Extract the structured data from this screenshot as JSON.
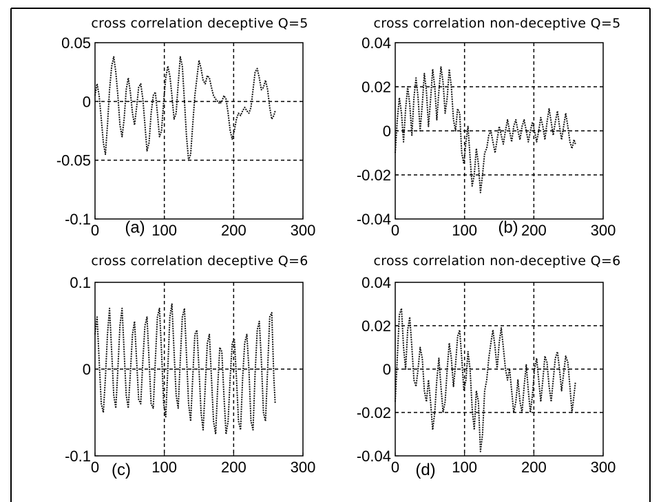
{
  "chart_data": [
    {
      "type": "line",
      "panel_label": "(a)",
      "title": "cross correlation deceptive Q=5",
      "xlabel": "",
      "ylabel": "",
      "xlim": [
        0,
        300
      ],
      "ylim": [
        -0.1,
        0.05
      ],
      "xticks": [
        0,
        100,
        200,
        300
      ],
      "yticks": [
        -0.1,
        -0.05,
        0,
        0.05
      ],
      "xtick_labels": [
        "0",
        "100",
        "200",
        "300"
      ],
      "ytick_labels": [
        "-0.1",
        "-0.05",
        "0",
        "0.05"
      ],
      "grid": true,
      "x": [
        0,
        3,
        6,
        9,
        12,
        15,
        18,
        21,
        24,
        27,
        30,
        33,
        36,
        39,
        42,
        45,
        48,
        51,
        54,
        57,
        60,
        63,
        66,
        69,
        72,
        75,
        78,
        81,
        84,
        87,
        90,
        93,
        96,
        99,
        102,
        105,
        108,
        111,
        114,
        117,
        120,
        123,
        126,
        129,
        132,
        135,
        138,
        141,
        144,
        147,
        150,
        153,
        156,
        159,
        162,
        165,
        168,
        171,
        174,
        177,
        180,
        183,
        186,
        189,
        192,
        195,
        198,
        201,
        204,
        207,
        210,
        213,
        216,
        219,
        222,
        225,
        228,
        231,
        234,
        237,
        240,
        243,
        246,
        249,
        252,
        255,
        258,
        260
      ],
      "series": [
        {
          "values": [
            0.005,
            0.015,
            0.005,
            -0.015,
            -0.035,
            -0.045,
            -0.02,
            0.01,
            0.03,
            0.038,
            0.025,
            0.005,
            -0.02,
            -0.03,
            -0.015,
            0.01,
            0.02,
            0.008,
            -0.01,
            -0.02,
            -0.005,
            0.012,
            0.015,
            0.002,
            -0.02,
            -0.042,
            -0.035,
            -0.01,
            0.005,
            0.008,
            -0.01,
            -0.03,
            -0.025,
            0.0,
            0.02,
            0.03,
            0.022,
            0.005,
            -0.015,
            -0.01,
            0.015,
            0.038,
            0.03,
            0.0,
            -0.03,
            -0.05,
            -0.045,
            -0.02,
            0.005,
            0.02,
            0.035,
            0.028,
            0.018,
            0.015,
            0.022,
            0.02,
            0.012,
            0.005,
            0.002,
            0.0,
            -0.002,
            0.0,
            0.005,
            0.002,
            -0.01,
            -0.025,
            -0.032,
            -0.025,
            -0.015,
            -0.01,
            -0.012,
            -0.008,
            -0.005,
            -0.008,
            -0.01,
            -0.005,
            0.01,
            0.025,
            0.028,
            0.02,
            0.01,
            0.012,
            0.018,
            0.01,
            -0.005,
            -0.015,
            -0.012,
            -0.008
          ]
        }
      ]
    },
    {
      "type": "line",
      "panel_label": "(b)",
      "title": "cross correlation non-deceptive Q=5",
      "xlabel": "",
      "ylabel": "",
      "xlim": [
        0,
        300
      ],
      "ylim": [
        -0.04,
        0.04
      ],
      "xticks": [
        0,
        100,
        200,
        300
      ],
      "yticks": [
        -0.04,
        -0.02,
        0,
        0.02,
        0.04
      ],
      "xtick_labels": [
        "0",
        "100",
        "200",
        "300"
      ],
      "ytick_labels": [
        "-0.04",
        "-0.02",
        "0",
        "0.02",
        "0.04"
      ],
      "grid": true,
      "x": [
        0,
        3,
        6,
        9,
        12,
        15,
        18,
        21,
        24,
        27,
        30,
        33,
        36,
        39,
        42,
        45,
        48,
        51,
        54,
        57,
        60,
        63,
        66,
        69,
        72,
        75,
        78,
        81,
        84,
        87,
        90,
        93,
        96,
        99,
        102,
        105,
        108,
        111,
        114,
        117,
        120,
        123,
        126,
        129,
        132,
        135,
        138,
        141,
        144,
        147,
        150,
        153,
        156,
        159,
        162,
        165,
        168,
        171,
        174,
        177,
        180,
        183,
        186,
        189,
        192,
        195,
        198,
        201,
        204,
        207,
        210,
        213,
        216,
        219,
        222,
        225,
        228,
        231,
        234,
        237,
        240,
        243,
        246,
        249,
        252,
        255,
        258,
        260
      ],
      "series": [
        {
          "values": [
            -0.01,
            0.005,
            0.015,
            0.008,
            -0.005,
            0.01,
            0.02,
            0.012,
            -0.002,
            0.015,
            0.024,
            0.015,
            0.0,
            0.012,
            0.026,
            0.018,
            0.002,
            0.014,
            0.028,
            0.02,
            0.005,
            0.018,
            0.029,
            0.022,
            0.008,
            0.015,
            0.028,
            0.02,
            0.005,
            0.0,
            0.01,
            0.008,
            -0.01,
            -0.015,
            -0.005,
            0.002,
            -0.012,
            -0.025,
            -0.02,
            -0.008,
            -0.015,
            -0.028,
            -0.02,
            -0.01,
            -0.008,
            -0.002,
            0.0,
            -0.005,
            -0.01,
            -0.004,
            0.002,
            -0.002,
            -0.006,
            0.0,
            0.005,
            0.0,
            -0.005,
            0.002,
            0.005,
            0.0,
            -0.004,
            0.002,
            0.005,
            0.0,
            -0.005,
            0.0,
            0.004,
            0.0,
            -0.005,
            0.0,
            0.006,
            0.002,
            -0.004,
            0.004,
            0.01,
            0.004,
            -0.002,
            0.004,
            0.009,
            0.002,
            -0.004,
            0.002,
            0.008,
            0.002,
            -0.005,
            -0.008,
            -0.004,
            -0.006
          ]
        }
      ]
    },
    {
      "type": "line",
      "panel_label": "(c)",
      "title": "cross correlation deceptive Q=6",
      "xlabel": "",
      "ylabel": "",
      "xlim": [
        0,
        300
      ],
      "ylim": [
        -0.1,
        0.1
      ],
      "xticks": [
        0,
        100,
        200,
        300
      ],
      "yticks": [
        -0.1,
        0,
        0.1
      ],
      "xtick_labels": [
        "0",
        "100",
        "200",
        "300"
      ],
      "ytick_labels": [
        "-0.1",
        "0",
        "0.1"
      ],
      "grid": true,
      "x": [
        0,
        3,
        6,
        9,
        12,
        15,
        18,
        21,
        24,
        27,
        30,
        33,
        36,
        39,
        42,
        45,
        48,
        51,
        54,
        57,
        60,
        63,
        66,
        69,
        72,
        75,
        78,
        81,
        84,
        87,
        90,
        93,
        96,
        99,
        102,
        105,
        108,
        111,
        114,
        117,
        120,
        123,
        126,
        129,
        132,
        135,
        138,
        141,
        144,
        147,
        150,
        153,
        156,
        159,
        162,
        165,
        168,
        171,
        174,
        177,
        180,
        183,
        186,
        189,
        192,
        195,
        198,
        201,
        204,
        207,
        210,
        213,
        216,
        219,
        222,
        225,
        228,
        231,
        234,
        237,
        240,
        243,
        246,
        249,
        252,
        255,
        258,
        260
      ],
      "series": [
        {
          "values": [
            0.04,
            0.06,
            0.01,
            -0.04,
            -0.05,
            -0.01,
            0.04,
            0.07,
            0.02,
            -0.03,
            -0.045,
            0.0,
            0.05,
            0.07,
            0.02,
            -0.03,
            -0.045,
            -0.005,
            0.04,
            0.055,
            0.01,
            -0.035,
            -0.04,
            0.01,
            0.05,
            0.06,
            0.01,
            -0.04,
            -0.045,
            0.01,
            0.06,
            0.07,
            0.02,
            -0.04,
            -0.055,
            0.0,
            0.06,
            0.075,
            0.02,
            -0.03,
            -0.045,
            0.01,
            0.06,
            0.07,
            0.015,
            -0.04,
            -0.06,
            -0.01,
            0.04,
            0.045,
            0.0,
            -0.05,
            -0.07,
            -0.02,
            0.03,
            0.04,
            -0.01,
            -0.06,
            -0.075,
            -0.02,
            0.025,
            0.02,
            -0.03,
            -0.075,
            -0.06,
            -0.01,
            0.03,
            0.035,
            -0.01,
            -0.06,
            -0.07,
            -0.01,
            0.03,
            0.04,
            0.0,
            -0.06,
            -0.07,
            -0.005,
            0.045,
            0.055,
            0.01,
            -0.05,
            -0.06,
            0.0,
            0.06,
            0.065,
            -0.01,
            -0.04
          ]
        }
      ]
    },
    {
      "type": "line",
      "panel_label": "(d)",
      "title": "cross correlation non-deceptive Q=6",
      "xlabel": "",
      "ylabel": "",
      "xlim": [
        0,
        300
      ],
      "ylim": [
        -0.04,
        0.04
      ],
      "xticks": [
        0,
        100,
        200,
        300
      ],
      "yticks": [
        -0.04,
        -0.02,
        0,
        0.02,
        0.04
      ],
      "xtick_labels": [
        "0",
        "100",
        "200",
        "300"
      ],
      "ytick_labels": [
        "-0.04",
        "-0.02",
        "0",
        "0.02",
        "0.04"
      ],
      "grid": true,
      "x": [
        0,
        3,
        6,
        9,
        12,
        15,
        18,
        21,
        24,
        27,
        30,
        33,
        36,
        39,
        42,
        45,
        48,
        51,
        54,
        57,
        60,
        63,
        66,
        69,
        72,
        75,
        78,
        81,
        84,
        87,
        90,
        93,
        96,
        99,
        102,
        105,
        108,
        111,
        114,
        117,
        120,
        123,
        126,
        129,
        132,
        135,
        138,
        141,
        144,
        147,
        150,
        153,
        156,
        159,
        162,
        165,
        168,
        171,
        174,
        177,
        180,
        183,
        186,
        189,
        192,
        195,
        198,
        201,
        204,
        207,
        210,
        213,
        216,
        219,
        222,
        225,
        228,
        231,
        234,
        237,
        240,
        243,
        246,
        249,
        252,
        255,
        258,
        260
      ],
      "series": [
        {
          "values": [
            -0.015,
            0.005,
            0.025,
            0.028,
            0.01,
            0.0,
            0.018,
            0.024,
            0.01,
            -0.005,
            -0.008,
            0.0,
            0.01,
            0.005,
            -0.01,
            -0.015,
            -0.005,
            -0.015,
            -0.028,
            -0.02,
            -0.005,
            0.005,
            -0.008,
            -0.02,
            -0.015,
            0.0,
            0.012,
            0.005,
            -0.008,
            0.002,
            0.015,
            0.018,
            0.005,
            -0.01,
            -0.005,
            0.008,
            0.0,
            -0.018,
            -0.028,
            -0.01,
            -0.015,
            -0.038,
            -0.03,
            -0.01,
            -0.005,
            0.005,
            0.012,
            0.018,
            0.01,
            0.0,
            0.012,
            0.019,
            0.01,
            0.0,
            -0.005,
            0.0,
            -0.01,
            -0.02,
            -0.015,
            -0.005,
            -0.015,
            -0.02,
            -0.008,
            0.002,
            -0.01,
            -0.02,
            -0.012,
            0.0,
            0.005,
            -0.005,
            -0.015,
            -0.005,
            0.006,
            0.003,
            -0.008,
            -0.015,
            -0.005,
            0.005,
            0.008,
            0.0,
            -0.01,
            -0.002,
            0.006,
            0.003,
            -0.008,
            -0.02,
            -0.012,
            -0.006
          ]
        }
      ]
    }
  ]
}
